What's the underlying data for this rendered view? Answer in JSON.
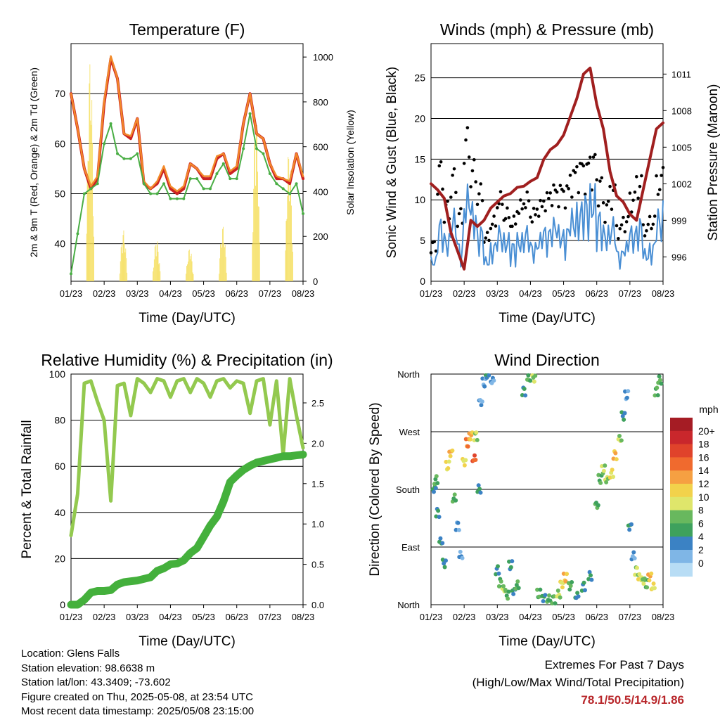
{
  "chart_data": [
    {
      "id": "temp",
      "type": "line",
      "title": "Temperature (F)",
      "xlabel": "Time (Day/UTC)",
      "ylabel": "2m & 9m T (Red, Orange) & 2m Td (Green)",
      "ylabel_right": "Solar Insolation (Yellow)",
      "x_ticks": [
        "01/23",
        "02/23",
        "03/23",
        "04/23",
        "05/23",
        "06/23",
        "07/23",
        "08/23"
      ],
      "ylim": [
        32.5,
        80
      ],
      "y_ticks": [
        40,
        50,
        60,
        70
      ],
      "ylim_right": [
        0,
        1060
      ],
      "y_ticks_right": [
        0,
        200,
        400,
        600,
        800,
        1000
      ],
      "x": [
        0,
        0.2,
        0.4,
        0.6,
        0.8,
        1.0,
        1.2,
        1.4,
        1.6,
        1.8,
        2.0,
        2.2,
        2.4,
        2.6,
        2.8,
        3.0,
        3.2,
        3.4,
        3.6,
        3.8,
        4.0,
        4.2,
        4.4,
        4.6,
        4.8,
        5.0,
        5.2,
        5.4,
        5.6,
        5.8,
        6.0,
        6.2,
        6.4,
        6.6,
        6.8,
        7.0
      ],
      "series": [
        {
          "name": "2m T",
          "color": "#cc2222",
          "values": [
            70,
            63,
            55,
            51,
            53,
            68,
            77,
            73,
            62,
            61,
            65,
            52,
            51,
            52,
            55,
            51,
            50,
            51,
            56,
            55,
            53,
            53,
            57,
            58,
            54,
            55,
            64,
            70,
            62,
            61,
            56,
            53,
            53,
            52,
            58,
            53
          ]
        },
        {
          "name": "9m T",
          "color": "#f28a2a",
          "values": [
            70,
            63,
            55,
            51.5,
            53.5,
            68.5,
            77.5,
            73,
            62,
            61.5,
            65,
            52.5,
            51,
            52.5,
            55.5,
            51.5,
            50.5,
            51.5,
            56,
            55,
            53.5,
            53.5,
            57.5,
            58,
            54.5,
            55.5,
            64,
            70,
            62,
            61,
            56,
            53.5,
            53,
            52.5,
            58,
            53.5
          ]
        },
        {
          "name": "2m Td",
          "color": "#4aae45",
          "values": [
            34,
            42,
            50,
            51,
            52,
            60,
            64,
            58,
            57,
            57,
            58,
            52,
            50,
            50,
            52,
            49,
            49,
            49,
            53,
            53,
            51,
            51,
            54,
            56,
            53,
            53,
            59,
            66,
            59,
            58,
            54,
            52,
            51,
            50,
            52,
            46
          ]
        }
      ],
      "solar_insolation": {
        "name": "Solar Insolation",
        "color": "#f5de5a",
        "day_peaks": [
          1000,
          230,
          190,
          150,
          250,
          750,
          600,
          750
        ]
      }
    },
    {
      "id": "wind",
      "type": "scatter",
      "title": "Winds (mph) & Pressure (mb)",
      "xlabel": "Time (Day/UTC)",
      "ylabel": "Sonic Wind & Gust (Blue, Black)",
      "ylabel_right": "Station Pressure (Maroon)",
      "x_ticks": [
        "01/23",
        "02/23",
        "03/23",
        "04/23",
        "05/23",
        "06/23",
        "07/23",
        "08/23"
      ],
      "ylim": [
        0,
        29.2
      ],
      "y_ticks": [
        0,
        5,
        10,
        15,
        20,
        25
      ],
      "ylim_right": [
        994,
        1013.5
      ],
      "y_ticks_right": [
        996,
        999,
        1002,
        1005,
        1008,
        1011
      ],
      "x": [
        0,
        0.2,
        0.4,
        0.6,
        0.8,
        1.0,
        1.2,
        1.4,
        1.6,
        1.8,
        2.0,
        2.2,
        2.4,
        2.6,
        2.8,
        3.0,
        3.2,
        3.4,
        3.6,
        3.8,
        4.0,
        4.2,
        4.4,
        4.6,
        4.8,
        5.0,
        5.2,
        5.4,
        5.6,
        5.8,
        6.0,
        6.2,
        6.4,
        6.6,
        6.8,
        7.0
      ],
      "series": [
        {
          "name": "Sonic Wind",
          "color": "#4a8fd4",
          "values": [
            3,
            8,
            6,
            9,
            5,
            12,
            10,
            7,
            3,
            5,
            7,
            6,
            5,
            6,
            7,
            5,
            6,
            7,
            8,
            7,
            7,
            9,
            10,
            11,
            12,
            9,
            7,
            8,
            4,
            5,
            7,
            8,
            4,
            5,
            9,
            10
          ]
        },
        {
          "name": "Gust",
          "color": "#000000",
          "values": [
            5,
            15,
            10,
            14,
            9,
            19,
            15,
            12,
            6,
            8,
            11,
            9,
            8,
            10,
            11,
            9,
            10,
            11,
            12,
            12,
            12,
            14,
            15,
            15,
            16,
            13,
            10,
            12,
            7,
            8,
            11,
            13,
            7,
            8,
            13,
            14
          ]
        },
        {
          "name": "Station Pressure",
          "color": "#a01f1f",
          "axis": "right",
          "values": [
            1002,
            1001.5,
            1000.8,
            998,
            996.5,
            995,
            999,
            998.5,
            999,
            1000,
            1000.5,
            1001,
            1001.2,
            1001.7,
            1001.8,
            1002.2,
            1002.5,
            1004,
            1004.8,
            1005.2,
            1006,
            1007.5,
            1009,
            1011,
            1011.5,
            1008.5,
            1006.5,
            1003,
            1001,
            1000.5,
            999.5,
            999,
            1001.5,
            1004,
            1006.5,
            1007
          ]
        }
      ]
    },
    {
      "id": "rh",
      "type": "line",
      "title": "Relative Humidity (%) & Precipitation (in)",
      "xlabel": "Time (Day/UTC)",
      "ylabel": "Percent & Total Rainfall",
      "x_ticks": [
        "01/23",
        "02/23",
        "03/23",
        "04/23",
        "05/23",
        "06/23",
        "07/23",
        "08/23"
      ],
      "ylim": [
        0,
        100
      ],
      "y_ticks": [
        0,
        20,
        40,
        60,
        80,
        100
      ],
      "ylim_right": [
        0,
        2.857
      ],
      "y_ticks_right": [
        "0.0",
        "0.5",
        "1.0",
        "1.5",
        "2.0",
        "2.5"
      ],
      "x": [
        0,
        0.2,
        0.4,
        0.6,
        0.8,
        1.0,
        1.2,
        1.4,
        1.6,
        1.8,
        2.0,
        2.2,
        2.4,
        2.6,
        2.8,
        3.0,
        3.2,
        3.4,
        3.6,
        3.8,
        4.0,
        4.2,
        4.4,
        4.6,
        4.8,
        5.0,
        5.2,
        5.4,
        5.6,
        5.8,
        6.0,
        6.2,
        6.4,
        6.6,
        6.8,
        7.0
      ],
      "series": [
        {
          "name": "Relative Humidity",
          "color": "#93c94f",
          "values": [
            30,
            48,
            96,
            97,
            88,
            80,
            45,
            95,
            96,
            82,
            98,
            96,
            92,
            98,
            97,
            90,
            97,
            98,
            92,
            98,
            96,
            90,
            97,
            98,
            94,
            97,
            96,
            83,
            97,
            98,
            78,
            97,
            65,
            98,
            82,
            68
          ]
        },
        {
          "name": "Total Precipitation",
          "color": "#44b03c",
          "axis": "right",
          "values": [
            0,
            0,
            0.06,
            0.15,
            0.17,
            0.17,
            0.18,
            0.25,
            0.28,
            0.29,
            0.3,
            0.32,
            0.34,
            0.42,
            0.45,
            0.5,
            0.51,
            0.55,
            0.64,
            0.7,
            0.84,
            0.98,
            1.09,
            1.28,
            1.52,
            1.6,
            1.67,
            1.72,
            1.76,
            1.78,
            1.8,
            1.82,
            1.84,
            1.84,
            1.85,
            1.86
          ]
        }
      ]
    },
    {
      "id": "dir",
      "type": "scatter",
      "title": "Wind Direction",
      "xlabel": "Time (Day/UTC)",
      "ylabel": "Direction (Colored By Speed)",
      "x_ticks": [
        "01/23",
        "02/23",
        "03/23",
        "04/23",
        "05/23",
        "06/23",
        "07/23",
        "08/23"
      ],
      "y_ticks": [
        "North",
        "East",
        "South",
        "West",
        "North"
      ],
      "ylim": [
        0,
        360
      ],
      "points": [
        [
          0.1,
          180,
          4
        ],
        [
          0.15,
          200,
          5
        ],
        [
          0.2,
          150,
          3
        ],
        [
          0.3,
          100,
          4
        ],
        [
          0.4,
          60,
          3
        ],
        [
          0.5,
          210,
          9
        ],
        [
          0.6,
          235,
          11
        ],
        [
          0.7,
          170,
          5
        ],
        [
          0.8,
          130,
          2
        ],
        [
          0.9,
          80,
          1
        ],
        [
          1.0,
          220,
          10
        ],
        [
          1.1,
          245,
          14
        ],
        [
          1.2,
          260,
          12
        ],
        [
          1.3,
          230,
          15
        ],
        [
          1.35,
          270,
          8
        ],
        [
          1.45,
          185,
          4
        ],
        [
          1.5,
          315,
          2
        ],
        [
          1.6,
          340,
          1
        ],
        [
          1.7,
          355,
          4
        ],
        [
          1.85,
          350,
          2
        ],
        [
          2.0,
          60,
          4
        ],
        [
          2.1,
          40,
          6
        ],
        [
          2.2,
          25,
          8
        ],
        [
          2.3,
          10,
          5
        ],
        [
          2.4,
          55,
          4
        ],
        [
          2.5,
          20,
          3
        ],
        [
          2.6,
          35,
          5
        ],
        [
          2.8,
          340,
          3
        ],
        [
          2.95,
          355,
          6
        ],
        [
          3.1,
          350,
          7
        ],
        [
          3.25,
          10,
          5
        ],
        [
          3.4,
          8,
          4
        ],
        [
          3.55,
          12,
          6
        ],
        [
          3.7,
          15,
          5
        ],
        [
          3.85,
          20,
          8
        ],
        [
          3.95,
          30,
          9
        ],
        [
          4.05,
          35,
          11
        ],
        [
          4.2,
          25,
          6
        ],
        [
          4.4,
          15,
          4
        ],
        [
          4.6,
          35,
          3
        ],
        [
          4.8,
          50,
          4
        ],
        [
          5.0,
          155,
          5
        ],
        [
          5.1,
          190,
          6
        ],
        [
          5.2,
          205,
          8
        ],
        [
          5.3,
          195,
          7
        ],
        [
          5.45,
          210,
          9
        ],
        [
          5.55,
          240,
          11
        ],
        [
          5.7,
          260,
          8
        ],
        [
          5.8,
          290,
          3
        ],
        [
          5.9,
          320,
          2
        ],
        [
          6.0,
          120,
          3
        ],
        [
          6.1,
          80,
          2
        ],
        [
          6.2,
          60,
          8
        ],
        [
          6.3,
          45,
          10
        ],
        [
          6.4,
          35,
          7
        ],
        [
          6.5,
          25,
          6
        ],
        [
          6.6,
          40,
          12
        ],
        [
          6.7,
          30,
          9
        ],
        [
          6.8,
          340,
          6
        ],
        [
          6.9,
          355,
          5
        ]
      ],
      "colorbar": {
        "title": "mph",
        "labels": [
          "20+",
          "18",
          "16",
          "14",
          "12",
          "10",
          "8",
          "6",
          "4",
          "2",
          "0"
        ],
        "colors": [
          "#a51c24",
          "#c9272c",
          "#e0432b",
          "#f06a2e",
          "#f6a042",
          "#f2d24b",
          "#dfe66b",
          "#68b85e",
          "#3ea15d",
          "#3b82c4",
          "#7fb6e6",
          "#b8ddf5"
        ]
      }
    }
  ],
  "info": {
    "location": "Location: Glens Falls",
    "elevation": "Station elevation: 98.6638 m",
    "latlon": "Station lat/lon: 43.3409; -73.602",
    "created": "Figure created on Thu, 2025-05-08, at 23:54 UTC",
    "recent": "Most recent data timestamp: 2025/05/08 23:15:00"
  },
  "extremes": {
    "line1": "Extremes For Past 7 Days",
    "line2": "(High/Low/Max Wind/Total Precipitation)",
    "high": "78.1",
    "low": "50.5",
    "maxwind": "14.9",
    "precip": "1.86"
  }
}
